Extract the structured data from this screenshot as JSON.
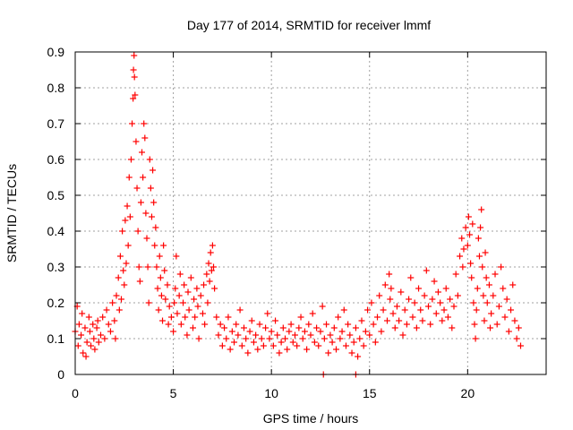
{
  "chart_data": {
    "type": "scatter",
    "title": "Day 177 of 2014, SRMTID for receiver lmmf",
    "xlabel": "GPS time / hours",
    "ylabel": "SRMTID / TECUs",
    "xlim": [
      0,
      24
    ],
    "ylim": [
      0,
      0.9
    ],
    "xticks": [
      0,
      5,
      10,
      15,
      20
    ],
    "xtick_labels": [
      "0",
      "5",
      "10",
      "15",
      "20"
    ],
    "yticks": [
      0,
      0.1,
      0.2,
      0.3,
      0.4,
      0.5,
      0.6,
      0.7,
      0.8,
      0.9
    ],
    "ytick_labels": [
      "0",
      "0.1",
      "0.2",
      "0.3",
      "0.4",
      "0.5",
      "0.6",
      "0.7",
      "0.8",
      "0.9"
    ],
    "grid": true,
    "marker": "plus",
    "color": "#ff0000",
    "series": [
      {
        "name": "SRMTID",
        "points": [
          [
            0.0,
            0.12
          ],
          [
            0.1,
            0.19
          ],
          [
            0.15,
            0.08
          ],
          [
            0.2,
            0.14
          ],
          [
            0.3,
            0.11
          ],
          [
            0.35,
            0.17
          ],
          [
            0.4,
            0.06
          ],
          [
            0.5,
            0.13
          ],
          [
            0.55,
            0.05
          ],
          [
            0.6,
            0.09
          ],
          [
            0.7,
            0.16
          ],
          [
            0.75,
            0.12
          ],
          [
            0.8,
            0.08
          ],
          [
            0.9,
            0.14
          ],
          [
            0.95,
            0.1
          ],
          [
            1.0,
            0.07
          ],
          [
            1.1,
            0.13
          ],
          [
            1.15,
            0.15
          ],
          [
            1.2,
            0.09
          ],
          [
            1.3,
            0.11
          ],
          [
            1.4,
            0.16
          ],
          [
            1.5,
            0.1
          ],
          [
            1.6,
            0.18
          ],
          [
            1.7,
            0.14
          ],
          [
            1.8,
            0.12
          ],
          [
            1.9,
            0.2
          ],
          [
            2.0,
            0.15
          ],
          [
            2.05,
            0.1
          ],
          [
            2.1,
            0.22
          ],
          [
            2.2,
            0.27
          ],
          [
            2.25,
            0.18
          ],
          [
            2.3,
            0.33
          ],
          [
            2.35,
            0.21
          ],
          [
            2.4,
            0.4
          ],
          [
            2.45,
            0.29
          ],
          [
            2.5,
            0.25
          ],
          [
            2.55,
            0.43
          ],
          [
            2.6,
            0.31
          ],
          [
            2.65,
            0.47
          ],
          [
            2.7,
            0.36
          ],
          [
            2.75,
            0.55
          ],
          [
            2.8,
            0.44
          ],
          [
            2.85,
            0.6
          ],
          [
            2.9,
            0.7
          ],
          [
            2.95,
            0.77
          ],
          [
            2.97,
            0.85
          ],
          [
            3.0,
            0.89
          ],
          [
            3.02,
            0.83
          ],
          [
            3.05,
            0.78
          ],
          [
            3.1,
            0.65
          ],
          [
            3.15,
            0.52
          ],
          [
            3.2,
            0.4
          ],
          [
            3.25,
            0.3
          ],
          [
            3.3,
            0.26
          ],
          [
            3.35,
            0.48
          ],
          [
            3.4,
            0.62
          ],
          [
            3.45,
            0.55
          ],
          [
            3.5,
            0.7
          ],
          [
            3.55,
            0.66
          ],
          [
            3.6,
            0.45
          ],
          [
            3.65,
            0.38
          ],
          [
            3.7,
            0.3
          ],
          [
            3.75,
            0.2
          ],
          [
            3.8,
            0.6
          ],
          [
            3.85,
            0.52
          ],
          [
            3.9,
            0.44
          ],
          [
            3.95,
            0.57
          ],
          [
            4.0,
            0.48
          ],
          [
            4.05,
            0.36
          ],
          [
            4.1,
            0.41
          ],
          [
            4.15,
            0.3
          ],
          [
            4.2,
            0.24
          ],
          [
            4.25,
            0.18
          ],
          [
            4.3,
            0.33
          ],
          [
            4.35,
            0.27
          ],
          [
            4.4,
            0.22
          ],
          [
            4.45,
            0.15
          ],
          [
            4.5,
            0.36
          ],
          [
            4.55,
            0.29
          ],
          [
            4.6,
            0.21
          ],
          [
            4.7,
            0.25
          ],
          [
            4.75,
            0.14
          ],
          [
            4.8,
            0.19
          ],
          [
            4.9,
            0.16
          ],
          [
            5.0,
            0.12
          ],
          [
            5.05,
            0.2
          ],
          [
            5.1,
            0.24
          ],
          [
            5.15,
            0.33
          ],
          [
            5.2,
            0.17
          ],
          [
            5.3,
            0.22
          ],
          [
            5.35,
            0.28
          ],
          [
            5.4,
            0.14
          ],
          [
            5.5,
            0.2
          ],
          [
            5.55,
            0.25
          ],
          [
            5.6,
            0.16
          ],
          [
            5.7,
            0.11
          ],
          [
            5.75,
            0.23
          ],
          [
            5.8,
            0.18
          ],
          [
            5.9,
            0.27
          ],
          [
            6.0,
            0.13
          ],
          [
            6.05,
            0.21
          ],
          [
            6.1,
            0.16
          ],
          [
            6.2,
            0.24
          ],
          [
            6.25,
            0.19
          ],
          [
            6.3,
            0.1
          ],
          [
            6.4,
            0.22
          ],
          [
            6.5,
            0.17
          ],
          [
            6.55,
            0.25
          ],
          [
            6.6,
            0.14
          ],
          [
            6.7,
            0.28
          ],
          [
            6.75,
            0.2
          ],
          [
            6.8,
            0.31
          ],
          [
            6.85,
            0.26
          ],
          [
            6.9,
            0.34
          ],
          [
            6.95,
            0.29
          ],
          [
            7.0,
            0.36
          ],
          [
            7.05,
            0.3
          ],
          [
            7.1,
            0.24
          ],
          [
            7.2,
            0.16
          ],
          [
            7.3,
            0.11
          ],
          [
            7.4,
            0.14
          ],
          [
            7.5,
            0.08
          ],
          [
            7.6,
            0.13
          ],
          [
            7.7,
            0.1
          ],
          [
            7.8,
            0.16
          ],
          [
            7.9,
            0.07
          ],
          [
            8.0,
            0.12
          ],
          [
            8.1,
            0.09
          ],
          [
            8.2,
            0.14
          ],
          [
            8.3,
            0.11
          ],
          [
            8.4,
            0.18
          ],
          [
            8.5,
            0.08
          ],
          [
            8.6,
            0.13
          ],
          [
            8.7,
            0.1
          ],
          [
            8.8,
            0.06
          ],
          [
            8.9,
            0.12
          ],
          [
            9.0,
            0.15
          ],
          [
            9.1,
            0.09
          ],
          [
            9.2,
            0.11
          ],
          [
            9.3,
            0.07
          ],
          [
            9.4,
            0.14
          ],
          [
            9.5,
            0.1
          ],
          [
            9.6,
            0.08
          ],
          [
            9.7,
            0.13
          ],
          [
            9.8,
            0.17
          ],
          [
            9.9,
            0.1
          ],
          [
            10.0,
            0.12
          ],
          [
            10.1,
            0.08
          ],
          [
            10.2,
            0.15
          ],
          [
            10.3,
            0.11
          ],
          [
            10.4,
            0.06
          ],
          [
            10.5,
            0.09
          ],
          [
            10.6,
            0.13
          ],
          [
            10.7,
            0.1
          ],
          [
            10.8,
            0.07
          ],
          [
            10.9,
            0.12
          ],
          [
            11.0,
            0.14
          ],
          [
            11.1,
            0.09
          ],
          [
            11.2,
            0.11
          ],
          [
            11.3,
            0.08
          ],
          [
            11.4,
            0.13
          ],
          [
            11.5,
            0.16
          ],
          [
            11.6,
            0.1
          ],
          [
            11.7,
            0.12
          ],
          [
            11.8,
            0.07
          ],
          [
            11.9,
            0.14
          ],
          [
            12.0,
            0.11
          ],
          [
            12.1,
            0.17
          ],
          [
            12.2,
            0.09
          ],
          [
            12.3,
            0.13
          ],
          [
            12.4,
            0.08
          ],
          [
            12.5,
            0.12
          ],
          [
            12.6,
            0.19
          ],
          [
            12.7,
            0.1
          ],
          [
            12.8,
            0.14
          ],
          [
            12.9,
            0.06
          ],
          [
            13.0,
            0.11
          ],
          [
            13.1,
            0.09
          ],
          [
            13.2,
            0.13
          ],
          [
            13.3,
            0.07
          ],
          [
            13.4,
            0.16
          ],
          [
            13.5,
            0.1
          ],
          [
            13.6,
            0.12
          ],
          [
            13.7,
            0.18
          ],
          [
            13.8,
            0.08
          ],
          [
            13.9,
            0.14
          ],
          [
            14.0,
            0.11
          ],
          [
            14.1,
            0.06
          ],
          [
            14.2,
            0.09
          ],
          [
            14.3,
            0.13
          ],
          [
            14.4,
            0.05
          ],
          [
            14.5,
            0.1
          ],
          [
            14.6,
            0.15
          ],
          [
            14.7,
            0.08
          ],
          [
            14.8,
            0.12
          ],
          [
            14.9,
            0.18
          ],
          [
            15.0,
            0.11
          ],
          [
            15.1,
            0.2
          ],
          [
            15.2,
            0.14
          ],
          [
            15.3,
            0.09
          ],
          [
            15.4,
            0.16
          ],
          [
            15.5,
            0.22
          ],
          [
            15.6,
            0.12
          ],
          [
            15.7,
            0.18
          ],
          [
            15.8,
            0.25
          ],
          [
            15.9,
            0.15
          ],
          [
            16.0,
            0.28
          ],
          [
            16.05,
            0.21
          ],
          [
            16.1,
            0.24
          ],
          [
            16.2,
            0.17
          ],
          [
            16.3,
            0.13
          ],
          [
            16.4,
            0.19
          ],
          [
            16.5,
            0.15
          ],
          [
            16.6,
            0.23
          ],
          [
            16.7,
            0.11
          ],
          [
            16.8,
            0.18
          ],
          [
            16.9,
            0.14
          ],
          [
            17.0,
            0.21
          ],
          [
            17.1,
            0.27
          ],
          [
            17.2,
            0.16
          ],
          [
            17.3,
            0.2
          ],
          [
            17.4,
            0.13
          ],
          [
            17.5,
            0.24
          ],
          [
            17.6,
            0.18
          ],
          [
            17.7,
            0.15
          ],
          [
            17.8,
            0.22
          ],
          [
            17.9,
            0.29
          ],
          [
            18.0,
            0.19
          ],
          [
            18.1,
            0.14
          ],
          [
            18.2,
            0.21
          ],
          [
            18.3,
            0.26
          ],
          [
            18.4,
            0.17
          ],
          [
            18.5,
            0.23
          ],
          [
            18.6,
            0.2
          ],
          [
            18.7,
            0.15
          ],
          [
            18.8,
            0.18
          ],
          [
            18.9,
            0.24
          ],
          [
            19.0,
            0.16
          ],
          [
            19.1,
            0.21
          ],
          [
            19.2,
            0.13
          ],
          [
            19.3,
            0.19
          ],
          [
            19.4,
            0.28
          ],
          [
            19.5,
            0.22
          ],
          [
            19.6,
            0.33
          ],
          [
            19.7,
            0.38
          ],
          [
            19.75,
            0.3
          ],
          [
            19.8,
            0.35
          ],
          [
            19.9,
            0.41
          ],
          [
            20.0,
            0.36
          ],
          [
            20.05,
            0.44
          ],
          [
            20.1,
            0.39
          ],
          [
            20.15,
            0.31
          ],
          [
            20.2,
            0.27
          ],
          [
            20.25,
            0.42
          ],
          [
            20.3,
            0.2
          ],
          [
            20.35,
            0.14
          ],
          [
            20.4,
            0.1
          ],
          [
            20.45,
            0.18
          ],
          [
            20.5,
            0.24
          ],
          [
            20.55,
            0.38
          ],
          [
            20.6,
            0.33
          ],
          [
            20.65,
            0.41
          ],
          [
            20.7,
            0.46
          ],
          [
            20.75,
            0.3
          ],
          [
            20.8,
            0.22
          ],
          [
            20.85,
            0.15
          ],
          [
            20.9,
            0.34
          ],
          [
            20.95,
            0.27
          ],
          [
            21.0,
            0.2
          ],
          [
            21.1,
            0.25
          ],
          [
            21.15,
            0.13
          ],
          [
            21.2,
            0.17
          ],
          [
            21.3,
            0.22
          ],
          [
            21.4,
            0.28
          ],
          [
            21.5,
            0.14
          ],
          [
            21.6,
            0.19
          ],
          [
            21.7,
            0.3
          ],
          [
            21.8,
            0.24
          ],
          [
            21.9,
            0.16
          ],
          [
            22.0,
            0.21
          ],
          [
            22.1,
            0.12
          ],
          [
            22.2,
            0.18
          ],
          [
            22.3,
            0.25
          ],
          [
            22.4,
            0.15
          ],
          [
            22.5,
            0.1
          ],
          [
            22.6,
            0.13
          ],
          [
            22.7,
            0.08
          ],
          [
            12.65,
            0.0
          ],
          [
            14.3,
            0.0
          ]
        ]
      }
    ]
  }
}
